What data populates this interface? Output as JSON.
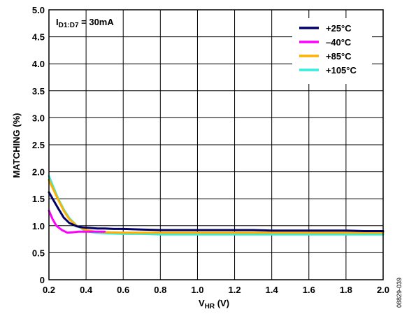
{
  "chart_data": {
    "type": "line",
    "xlabel": "V",
    "xlabel_sub": "HR",
    "xlabel_unit": " (V)",
    "ylabel": "MATCHING (%)",
    "xlim": [
      0.2,
      2.0
    ],
    "ylim": [
      0,
      5.0
    ],
    "xticks": [
      "0.2",
      "0.4",
      "0.6",
      "0.8",
      "1.0",
      "1.2",
      "1.4",
      "1.6",
      "1.8",
      "2.0"
    ],
    "yticks": [
      "0",
      "0.5",
      "1.0",
      "1.5",
      "2.0",
      "2.5",
      "3.0",
      "3.5",
      "4.0",
      "4.5",
      "5.0"
    ],
    "grid": true,
    "legend_position": "top-right",
    "annotation": {
      "main": "I",
      "sub": "D1:D7",
      "rest": " = 30mA"
    },
    "figure_code": "08829-039",
    "series": [
      {
        "name": "+25°C",
        "color": "#000066",
        "x": [
          0.2,
          0.22,
          0.25,
          0.28,
          0.31,
          0.35,
          0.38,
          0.42,
          0.46,
          0.5,
          0.55,
          0.6,
          0.7,
          0.8,
          0.9,
          1.0,
          1.1,
          1.2,
          1.3,
          1.4,
          1.5,
          1.6,
          1.7,
          1.8,
          1.9,
          2.0
        ],
        "y": [
          1.62,
          1.5,
          1.32,
          1.15,
          1.05,
          0.99,
          0.97,
          0.96,
          0.95,
          0.95,
          0.94,
          0.94,
          0.93,
          0.92,
          0.92,
          0.92,
          0.92,
          0.92,
          0.92,
          0.91,
          0.91,
          0.91,
          0.91,
          0.91,
          0.9,
          0.9
        ]
      },
      {
        "name": "–40°C",
        "color": "#ff00ff",
        "x": [
          0.2,
          0.22,
          0.24,
          0.27,
          0.3,
          0.33,
          0.36,
          0.4,
          0.45,
          0.5
        ],
        "y": [
          1.28,
          1.12,
          1.0,
          0.92,
          0.87,
          0.88,
          0.89,
          0.89,
          0.89,
          0.89
        ]
      },
      {
        "name": "+85°C",
        "color": "#ffb000",
        "x": [
          0.2,
          0.22,
          0.25,
          0.28,
          0.31,
          0.35,
          0.4,
          0.45,
          0.5,
          0.6,
          0.7,
          0.8,
          0.9,
          1.0,
          1.1,
          1.2,
          1.3,
          1.4,
          1.5,
          1.6,
          1.7,
          1.8,
          1.9,
          2.0
        ],
        "y": [
          1.85,
          1.7,
          1.48,
          1.28,
          1.12,
          1.0,
          0.92,
          0.89,
          0.88,
          0.87,
          0.87,
          0.87,
          0.87,
          0.87,
          0.87,
          0.87,
          0.87,
          0.87,
          0.87,
          0.87,
          0.87,
          0.87,
          0.87,
          0.87
        ]
      },
      {
        "name": "+105°C",
        "color": "#33eedd",
        "x": [
          0.2,
          0.22,
          0.25,
          0.28,
          0.31,
          0.35,
          0.4,
          0.45,
          0.5,
          0.6,
          0.7,
          0.8,
          0.9,
          1.0,
          1.1,
          1.2,
          1.3,
          1.4,
          1.5,
          1.6,
          1.7,
          1.8,
          1.9,
          2.0
        ],
        "y": [
          1.92,
          1.75,
          1.5,
          1.3,
          1.14,
          1.0,
          0.9,
          0.87,
          0.86,
          0.85,
          0.85,
          0.84,
          0.84,
          0.84,
          0.84,
          0.84,
          0.84,
          0.84,
          0.84,
          0.84,
          0.84,
          0.84,
          0.84,
          0.84
        ]
      }
    ]
  }
}
